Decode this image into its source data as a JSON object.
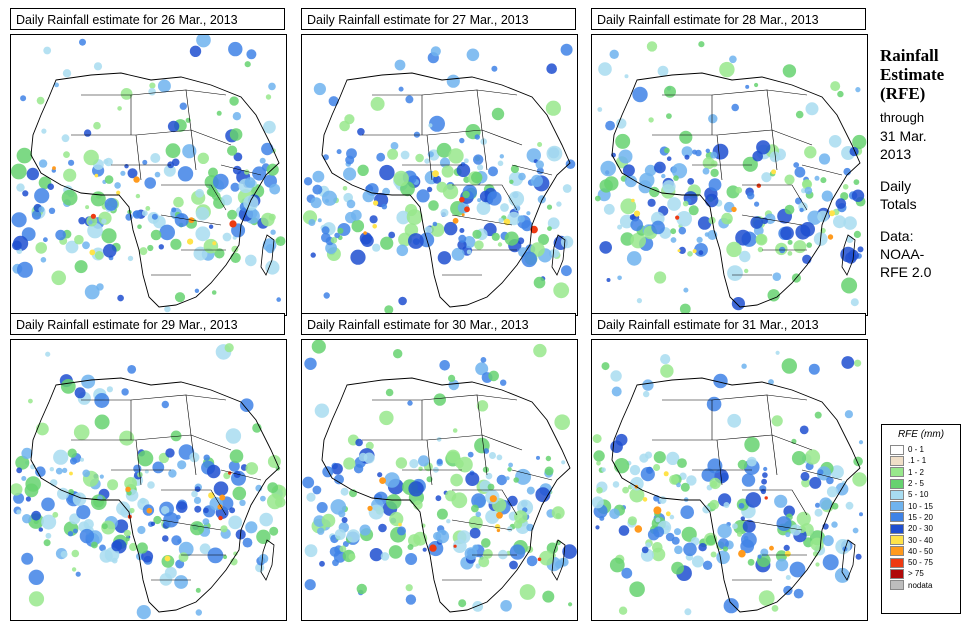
{
  "panels": [
    {
      "title": "Daily Rainfall estimate for  26 Mar., 2013"
    },
    {
      "title": "Daily Rainfall estimate for  27 Mar., 2013"
    },
    {
      "title": "Daily Rainfall estimate for  28 Mar., 2013"
    },
    {
      "title": "Daily Rainfall estimate for  29 Mar., 2013"
    },
    {
      "title": "Daily Rainfall estimate for  30 Mar., 2013"
    },
    {
      "title": "Daily Rainfall estimate for  31 Mar., 2013"
    }
  ],
  "side": {
    "title_line1": "Rainfall",
    "title_line2": "Estimate",
    "title_line3": "(RFE)",
    "through_label": "through",
    "date_line1": "31 Mar.",
    "date_line2": "2013",
    "daily_line1": "Daily",
    "daily_line2": "Totals",
    "data_label": "Data:",
    "source_line1": "NOAA-",
    "source_line2": "RFE 2.0"
  },
  "legend": {
    "title": "RFE (mm)",
    "items": [
      {
        "label": "0 - 1",
        "color": "#ffffff"
      },
      {
        "label": ".1 - 1",
        "color": "#f0dfc8"
      },
      {
        "label": "1 - 2",
        "color": "#98e88c"
      },
      {
        "label": "2 - 5",
        "color": "#66d270"
      },
      {
        "label": "5 - 10",
        "color": "#a8dcf0"
      },
      {
        "label": "10 - 15",
        "color": "#6fb3ee"
      },
      {
        "label": "15 - 20",
        "color": "#3f83e6"
      },
      {
        "label": "20 - 30",
        "color": "#1f4fd0"
      },
      {
        "label": "30 - 40",
        "color": "#ffe34a"
      },
      {
        "label": "40 - 50",
        "color": "#ff9a1e"
      },
      {
        "label": "50 - 75",
        "color": "#ee3a12"
      },
      {
        "label": "> 75",
        "color": "#b00a0a"
      },
      {
        "label": "nodata",
        "color": "#bdbdbd"
      }
    ]
  }
}
